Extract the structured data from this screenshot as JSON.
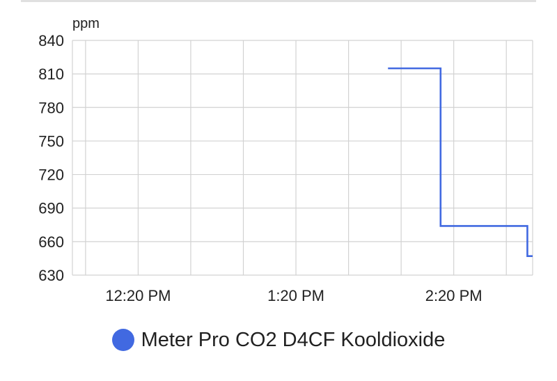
{
  "chart_data": {
    "type": "line",
    "interpolation": "step-after",
    "y_unit": "ppm",
    "y_ticks": [
      840,
      810,
      780,
      750,
      720,
      690,
      660,
      630
    ],
    "ylim": [
      630,
      840
    ],
    "x_ticks": [
      "12:20 PM",
      "1:20 PM",
      "2:20 PM"
    ],
    "xlim": [
      "11:55 AM",
      "2:50 PM"
    ],
    "grid": true,
    "legend_position": "bottom-center",
    "series": [
      {
        "name": "Meter Pro CO2 D4CF Kooldioxide",
        "color": "#4169e1",
        "points": [
          {
            "x": "1:55 PM",
            "y": 815
          },
          {
            "x": "2:15 PM",
            "y": 674
          },
          {
            "x": "2:48 PM",
            "y": 647
          },
          {
            "x": "2:50 PM",
            "y": 647
          }
        ]
      }
    ]
  }
}
